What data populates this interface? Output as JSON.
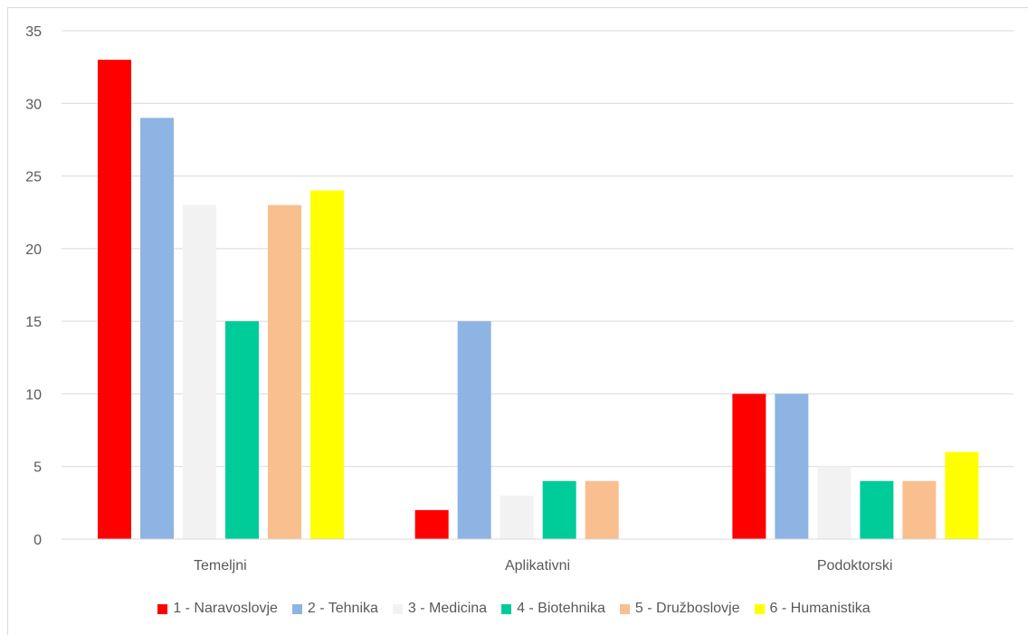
{
  "chart_data": {
    "type": "bar",
    "title": "",
    "xlabel": "",
    "ylabel": "",
    "categories": [
      "Temeljni",
      "Aplikativni",
      "Podoktorski"
    ],
    "ylim": [
      0,
      35
    ],
    "yticks": [
      0,
      5,
      10,
      15,
      20,
      25,
      30,
      35
    ],
    "grid": true,
    "legend_position": "bottom",
    "series": [
      {
        "name": "1 - Naravoslovje",
        "color": "#ff0000",
        "values": [
          33,
          2,
          10
        ]
      },
      {
        "name": "2 - Tehnika",
        "color": "#8eb4e3",
        "values": [
          29,
          15,
          10
        ]
      },
      {
        "name": "3 - Medicina",
        "color": "#f2f2f2",
        "values": [
          23,
          3,
          5
        ]
      },
      {
        "name": "4 - Biotehnika",
        "color": "#00cc99",
        "values": [
          15,
          4,
          4
        ]
      },
      {
        "name": "5 - Družboslovje",
        "color": "#f9bf8f",
        "values": [
          23,
          4,
          4
        ]
      },
      {
        "name": "6 - Humanistika",
        "color": "#ffff00",
        "values": [
          24,
          0,
          6
        ]
      }
    ]
  }
}
